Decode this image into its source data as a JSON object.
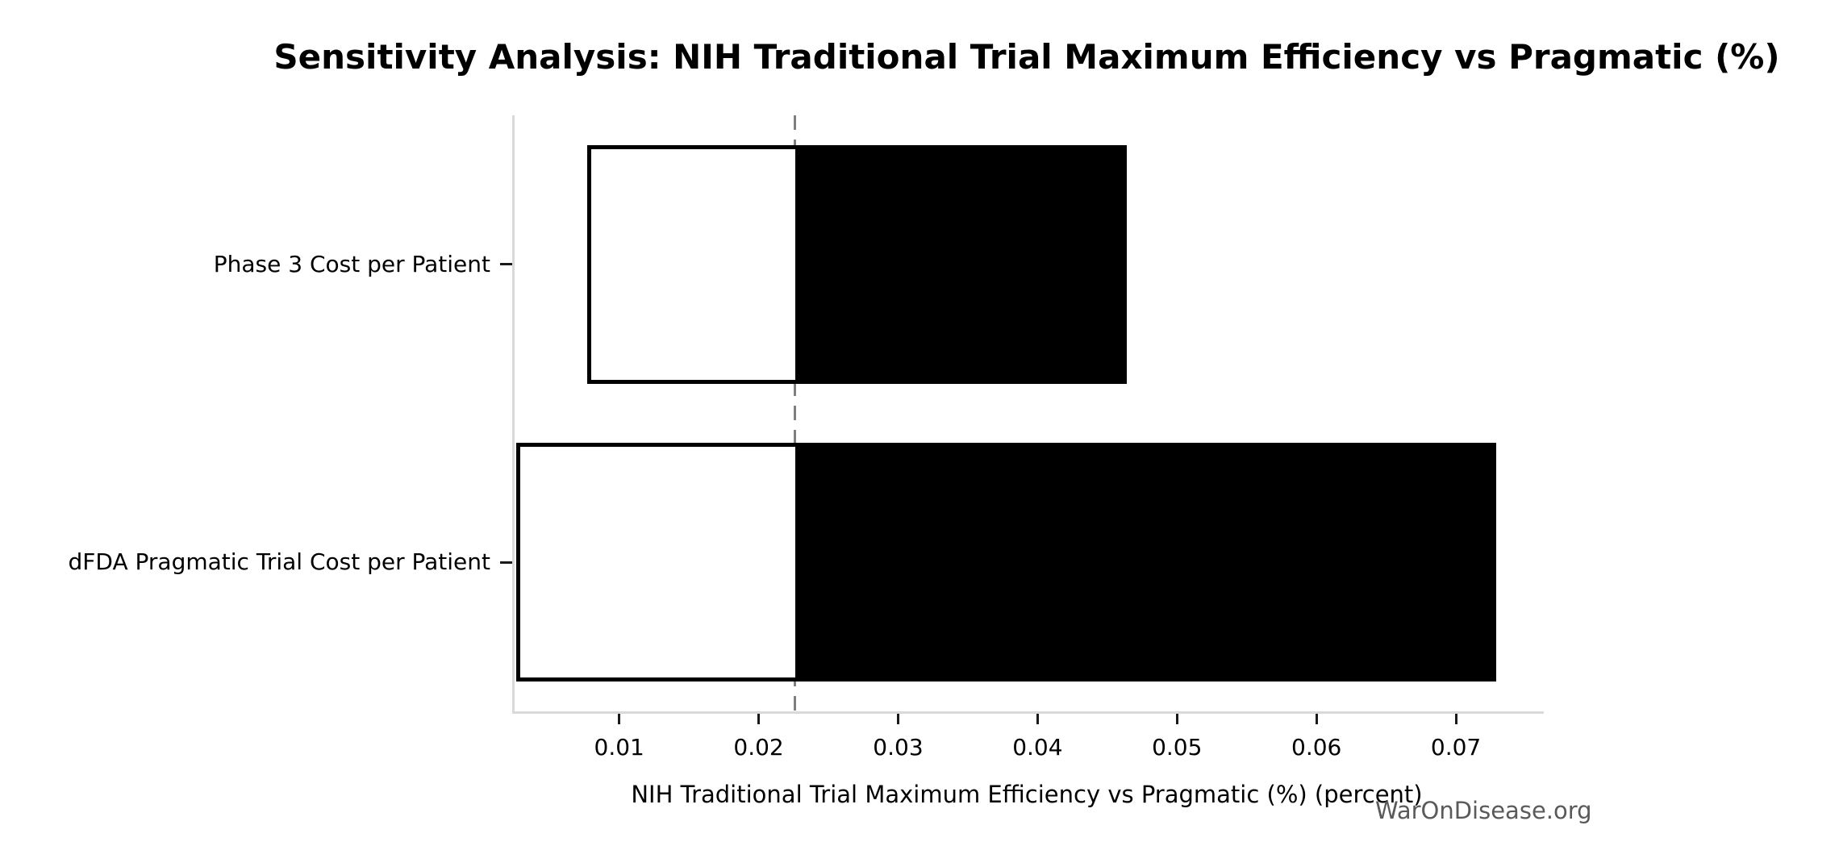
{
  "watermark": "WarOnDisease.org",
  "chart_data": {
    "type": "bar",
    "subtype": "tornado-sensitivity-horizontal",
    "title": "Sensitivity Analysis: NIH Traditional Trial Maximum Efficiency vs Pragmatic (%)",
    "xlabel": "NIH Traditional Trial Maximum Efficiency vs Pragmatic (%) (percent)",
    "ylabel": "",
    "categories": [
      "Phase 3 Cost per Patient",
      "dFDA Pragmatic Trial Cost per Patient"
    ],
    "base_value": 0.0226,
    "rows": [
      {
        "label": "Phase 3 Cost per Patient",
        "low": 0.0077,
        "high": 0.0464
      },
      {
        "label": "dFDA Pragmatic Trial Cost per Patient",
        "low": 0.0026,
        "high": 0.0729
      }
    ],
    "xlim": [
      0.0025,
      0.0763
    ],
    "xticks": [
      0.01,
      0.02,
      0.03,
      0.04,
      0.05,
      0.06,
      0.07
    ],
    "xtick_labels": [
      "0.01",
      "0.02",
      "0.03",
      "0.04",
      "0.05",
      "0.06",
      "0.07"
    ],
    "grid": false,
    "legend": null,
    "bar_height_fraction": 0.8,
    "colors": {
      "low_fill": "#ffffff",
      "high_fill": "#000000",
      "bar_edge": "#000000",
      "base_line": "#7f7f7f",
      "spine": "#d9d9d9",
      "tick": "#1a1a1a",
      "text": "#000000",
      "watermark": "#5a5a5a"
    }
  }
}
